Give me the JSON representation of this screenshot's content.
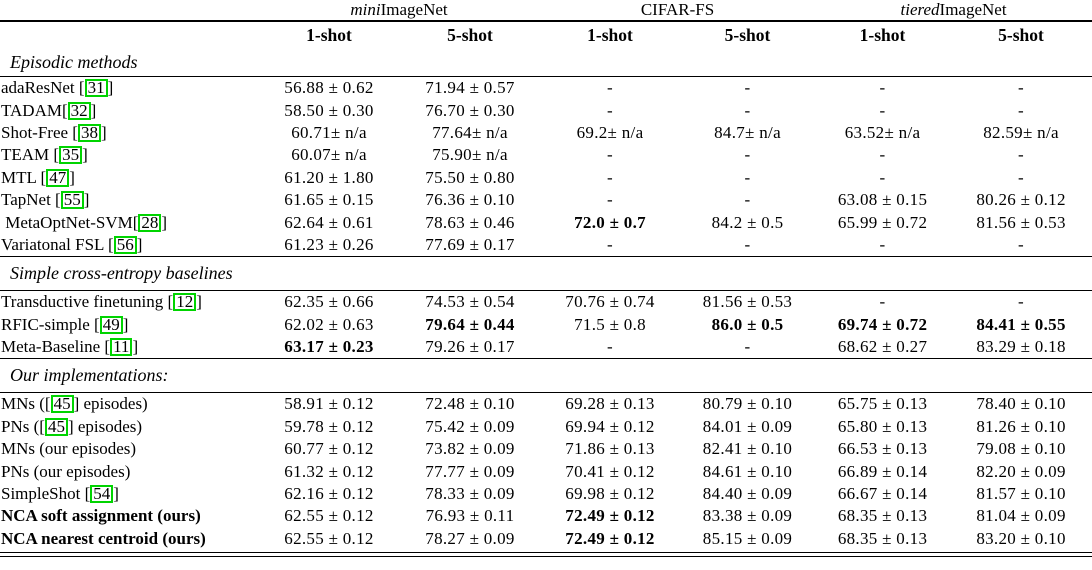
{
  "page": {
    "background": "#ffffff",
    "text_color": "#000000"
  },
  "colors": {
    "citation_box": "#00d400"
  },
  "table": {
    "datasets": [
      {
        "italic": "mini",
        "normal": "ImageNet"
      },
      {
        "italic": "",
        "normal": "CIFAR-FS"
      },
      {
        "italic": "tiered",
        "normal": "ImageNet"
      }
    ],
    "shot_labels": [
      "1-shot",
      "5-shot",
      "1-shot",
      "5-shot",
      "1-shot",
      "5-shot"
    ],
    "sections": [
      {
        "title": "Episodic methods",
        "rows": [
          {
            "pre": "adaResNet ",
            "cite": "31",
            "post": "",
            "bold_label": false,
            "cells": [
              {
                "t": "56.88 ± 0.62"
              },
              {
                "t": "71.94 ± 0.57"
              },
              {
                "t": "-"
              },
              {
                "t": "-"
              },
              {
                "t": "-"
              },
              {
                "t": "-"
              }
            ]
          },
          {
            "pre": "TADAM",
            "cite": "32",
            "post": "",
            "bold_label": false,
            "cells": [
              {
                "t": "58.50 ± 0.30"
              },
              {
                "t": "76.70 ± 0.30"
              },
              {
                "t": "-"
              },
              {
                "t": "-"
              },
              {
                "t": "-"
              },
              {
                "t": "-"
              }
            ]
          },
          {
            "pre": "Shot-Free ",
            "cite": "38",
            "post": "",
            "bold_label": false,
            "cells": [
              {
                "t": "60.71± n/a"
              },
              {
                "t": "77.64± n/a"
              },
              {
                "t": "69.2± n/a"
              },
              {
                "t": "84.7± n/a"
              },
              {
                "t": "63.52± n/a"
              },
              {
                "t": "82.59± n/a"
              }
            ]
          },
          {
            "pre": "TEAM ",
            "cite": "35",
            "post": "",
            "bold_label": false,
            "cells": [
              {
                "t": "60.07± n/a"
              },
              {
                "t": "75.90± n/a"
              },
              {
                "t": "-"
              },
              {
                "t": "-"
              },
              {
                "t": "-"
              },
              {
                "t": "-"
              }
            ]
          },
          {
            "pre": "MTL ",
            "cite": "47",
            "post": "",
            "bold_label": false,
            "cells": [
              {
                "t": "61.20 ± 1.80"
              },
              {
                "t": "75.50 ± 0.80"
              },
              {
                "t": "-"
              },
              {
                "t": "-"
              },
              {
                "t": "-"
              },
              {
                "t": "-"
              }
            ]
          },
          {
            "pre": "TapNet ",
            "cite": "55",
            "post": "",
            "bold_label": false,
            "cells": [
              {
                "t": "61.65 ± 0.15"
              },
              {
                "t": "76.36 ± 0.10"
              },
              {
                "t": "-"
              },
              {
                "t": "-"
              },
              {
                "t": "63.08 ± 0.15"
              },
              {
                "t": "80.26 ± 0.12"
              }
            ]
          },
          {
            "pre": " MetaOptNet-SVM",
            "cite": "28",
            "post": "",
            "bold_label": false,
            "cells": [
              {
                "t": "62.64 ± 0.61"
              },
              {
                "t": "78.63 ± 0.46"
              },
              {
                "t": "72.0 ± 0.7",
                "b": true
              },
              {
                "t": "84.2 ± 0.5"
              },
              {
                "t": "65.99 ± 0.72"
              },
              {
                "t": "81.56 ± 0.53"
              }
            ]
          },
          {
            "pre": "Variatonal FSL ",
            "cite": "56",
            "post": "",
            "bold_label": false,
            "cells": [
              {
                "t": "61.23 ± 0.26"
              },
              {
                "t": "77.69 ± 0.17"
              },
              {
                "t": "-"
              },
              {
                "t": "-"
              },
              {
                "t": "-"
              },
              {
                "t": "-"
              }
            ]
          }
        ]
      },
      {
        "title": "Simple cross-entropy baselines",
        "rows": [
          {
            "pre": "Transductive finetuning ",
            "cite": "12",
            "post": "",
            "bold_label": false,
            "cells": [
              {
                "t": "62.35 ± 0.66"
              },
              {
                "t": "74.53 ± 0.54"
              },
              {
                "t": "70.76 ± 0.74"
              },
              {
                "t": "81.56 ± 0.53"
              },
              {
                "t": "-"
              },
              {
                "t": "-"
              }
            ]
          },
          {
            "pre": "RFIC-simple ",
            "cite": "49",
            "post": "",
            "bold_label": false,
            "cells": [
              {
                "t": "62.02 ± 0.63"
              },
              {
                "t": "79.64 ± 0.44",
                "b": true
              },
              {
                "t": "71.5 ± 0.8"
              },
              {
                "t": "86.0 ± 0.5",
                "b": true
              },
              {
                "t": "69.74 ± 0.72",
                "b": true
              },
              {
                "t": "84.41 ± 0.55",
                "b": true
              }
            ]
          },
          {
            "pre": "Meta-Baseline ",
            "cite": "11",
            "post": "",
            "bold_label": false,
            "cells": [
              {
                "t": "63.17 ± 0.23",
                "b": true
              },
              {
                "t": "79.26 ± 0.17"
              },
              {
                "t": "-"
              },
              {
                "t": "-"
              },
              {
                "t": "68.62 ± 0.27"
              },
              {
                "t": "83.29 ± 0.18"
              }
            ]
          }
        ]
      },
      {
        "title": "Our implementations:",
        "rows": [
          {
            "pre": "MNs (",
            "cite": "45",
            "post": " episodes)",
            "bold_label": false,
            "cells": [
              {
                "t": "58.91 ± 0.12"
              },
              {
                "t": "72.48 ± 0.10"
              },
              {
                "t": "69.28 ± 0.13"
              },
              {
                "t": "80.79 ± 0.10"
              },
              {
                "t": "65.75 ± 0.13"
              },
              {
                "t": "78.40 ± 0.10"
              }
            ]
          },
          {
            "pre": "PNs (",
            "cite": "45",
            "post": " episodes)",
            "bold_label": false,
            "cells": [
              {
                "t": "59.78 ± 0.12"
              },
              {
                "t": "75.42 ± 0.09"
              },
              {
                "t": "69.94 ± 0.12"
              },
              {
                "t": "84.01 ± 0.09"
              },
              {
                "t": "65.80 ± 0.13"
              },
              {
                "t": "81.26 ± 0.10"
              }
            ]
          },
          {
            "pre": "MNs (our episodes)",
            "cite": null,
            "post": "",
            "bold_label": false,
            "cells": [
              {
                "t": "60.77 ± 0.12"
              },
              {
                "t": "73.82 ± 0.09"
              },
              {
                "t": "71.86 ± 0.13"
              },
              {
                "t": "82.41 ± 0.10"
              },
              {
                "t": "66.53 ± 0.13"
              },
              {
                "t": "79.08 ± 0.10"
              }
            ]
          },
          {
            "pre": "PNs (our episodes)",
            "cite": null,
            "post": "",
            "bold_label": false,
            "cells": [
              {
                "t": "61.32 ± 0.12"
              },
              {
                "t": "77.77 ± 0.09"
              },
              {
                "t": "70.41 ± 0.12"
              },
              {
                "t": "84.61 ± 0.10"
              },
              {
                "t": "66.89 ± 0.14"
              },
              {
                "t": "82.20 ± 0.09"
              }
            ]
          },
          {
            "pre": "SimpleShot ",
            "cite": "54",
            "post": "",
            "bold_label": false,
            "cells": [
              {
                "t": "62.16 ± 0.12"
              },
              {
                "t": "78.33 ± 0.09"
              },
              {
                "t": "69.98 ± 0.12"
              },
              {
                "t": "84.40 ± 0.09"
              },
              {
                "t": "66.67 ± 0.14"
              },
              {
                "t": "81.57 ± 0.10"
              }
            ]
          },
          {
            "pre": "NCA soft assignment (ours)",
            "cite": null,
            "post": "",
            "bold_label": true,
            "cells": [
              {
                "t": "62.55 ± 0.12"
              },
              {
                "t": "76.93 ± 0.11"
              },
              {
                "t": "72.49 ± 0.12",
                "b": true
              },
              {
                "t": "83.38 ± 0.09"
              },
              {
                "t": "68.35 ± 0.13"
              },
              {
                "t": "81.04 ± 0.09"
              }
            ]
          },
          {
            "pre": "NCA nearest centroid (ours)",
            "cite": null,
            "post": "",
            "bold_label": true,
            "cells": [
              {
                "t": "62.55 ± 0.12"
              },
              {
                "t": "78.27 ± 0.09"
              },
              {
                "t": "72.49 ± 0.12",
                "b": true
              },
              {
                "t": "85.15 ± 0.09"
              },
              {
                "t": "68.35 ± 0.13"
              },
              {
                "t": "83.20 ± 0.10"
              }
            ]
          }
        ]
      }
    ]
  }
}
